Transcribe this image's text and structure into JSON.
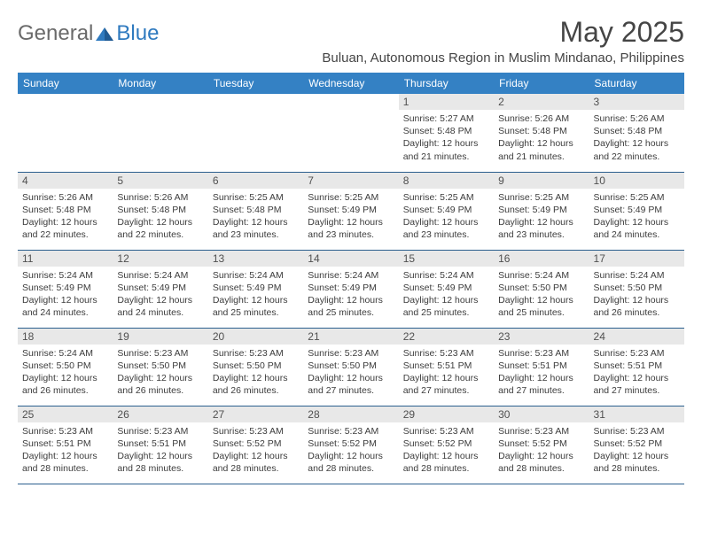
{
  "logo": {
    "general": "General",
    "blue": "Blue"
  },
  "title": "May 2025",
  "subtitle": "Buluan, Autonomous Region in Muslim Mindanao, Philippines",
  "headers": [
    "Sunday",
    "Monday",
    "Tuesday",
    "Wednesday",
    "Thursday",
    "Friday",
    "Saturday"
  ],
  "colors": {
    "header_bg": "#3481c4",
    "header_text": "#ffffff",
    "daynum_bg": "#e8e8e8",
    "border": "#2b5f8e",
    "logo_gray": "#6a6a6a",
    "logo_blue": "#2f7abf"
  },
  "weeks": [
    [
      null,
      null,
      null,
      null,
      {
        "n": "1",
        "sr": "Sunrise: 5:27 AM",
        "ss": "Sunset: 5:48 PM",
        "d1": "Daylight: 12 hours",
        "d2": "and 21 minutes."
      },
      {
        "n": "2",
        "sr": "Sunrise: 5:26 AM",
        "ss": "Sunset: 5:48 PM",
        "d1": "Daylight: 12 hours",
        "d2": "and 21 minutes."
      },
      {
        "n": "3",
        "sr": "Sunrise: 5:26 AM",
        "ss": "Sunset: 5:48 PM",
        "d1": "Daylight: 12 hours",
        "d2": "and 22 minutes."
      }
    ],
    [
      {
        "n": "4",
        "sr": "Sunrise: 5:26 AM",
        "ss": "Sunset: 5:48 PM",
        "d1": "Daylight: 12 hours",
        "d2": "and 22 minutes."
      },
      {
        "n": "5",
        "sr": "Sunrise: 5:26 AM",
        "ss": "Sunset: 5:48 PM",
        "d1": "Daylight: 12 hours",
        "d2": "and 22 minutes."
      },
      {
        "n": "6",
        "sr": "Sunrise: 5:25 AM",
        "ss": "Sunset: 5:48 PM",
        "d1": "Daylight: 12 hours",
        "d2": "and 23 minutes."
      },
      {
        "n": "7",
        "sr": "Sunrise: 5:25 AM",
        "ss": "Sunset: 5:49 PM",
        "d1": "Daylight: 12 hours",
        "d2": "and 23 minutes."
      },
      {
        "n": "8",
        "sr": "Sunrise: 5:25 AM",
        "ss": "Sunset: 5:49 PM",
        "d1": "Daylight: 12 hours",
        "d2": "and 23 minutes."
      },
      {
        "n": "9",
        "sr": "Sunrise: 5:25 AM",
        "ss": "Sunset: 5:49 PM",
        "d1": "Daylight: 12 hours",
        "d2": "and 23 minutes."
      },
      {
        "n": "10",
        "sr": "Sunrise: 5:25 AM",
        "ss": "Sunset: 5:49 PM",
        "d1": "Daylight: 12 hours",
        "d2": "and 24 minutes."
      }
    ],
    [
      {
        "n": "11",
        "sr": "Sunrise: 5:24 AM",
        "ss": "Sunset: 5:49 PM",
        "d1": "Daylight: 12 hours",
        "d2": "and 24 minutes."
      },
      {
        "n": "12",
        "sr": "Sunrise: 5:24 AM",
        "ss": "Sunset: 5:49 PM",
        "d1": "Daylight: 12 hours",
        "d2": "and 24 minutes."
      },
      {
        "n": "13",
        "sr": "Sunrise: 5:24 AM",
        "ss": "Sunset: 5:49 PM",
        "d1": "Daylight: 12 hours",
        "d2": "and 25 minutes."
      },
      {
        "n": "14",
        "sr": "Sunrise: 5:24 AM",
        "ss": "Sunset: 5:49 PM",
        "d1": "Daylight: 12 hours",
        "d2": "and 25 minutes."
      },
      {
        "n": "15",
        "sr": "Sunrise: 5:24 AM",
        "ss": "Sunset: 5:49 PM",
        "d1": "Daylight: 12 hours",
        "d2": "and 25 minutes."
      },
      {
        "n": "16",
        "sr": "Sunrise: 5:24 AM",
        "ss": "Sunset: 5:50 PM",
        "d1": "Daylight: 12 hours",
        "d2": "and 25 minutes."
      },
      {
        "n": "17",
        "sr": "Sunrise: 5:24 AM",
        "ss": "Sunset: 5:50 PM",
        "d1": "Daylight: 12 hours",
        "d2": "and 26 minutes."
      }
    ],
    [
      {
        "n": "18",
        "sr": "Sunrise: 5:24 AM",
        "ss": "Sunset: 5:50 PM",
        "d1": "Daylight: 12 hours",
        "d2": "and 26 minutes."
      },
      {
        "n": "19",
        "sr": "Sunrise: 5:23 AM",
        "ss": "Sunset: 5:50 PM",
        "d1": "Daylight: 12 hours",
        "d2": "and 26 minutes."
      },
      {
        "n": "20",
        "sr": "Sunrise: 5:23 AM",
        "ss": "Sunset: 5:50 PM",
        "d1": "Daylight: 12 hours",
        "d2": "and 26 minutes."
      },
      {
        "n": "21",
        "sr": "Sunrise: 5:23 AM",
        "ss": "Sunset: 5:50 PM",
        "d1": "Daylight: 12 hours",
        "d2": "and 27 minutes."
      },
      {
        "n": "22",
        "sr": "Sunrise: 5:23 AM",
        "ss": "Sunset: 5:51 PM",
        "d1": "Daylight: 12 hours",
        "d2": "and 27 minutes."
      },
      {
        "n": "23",
        "sr": "Sunrise: 5:23 AM",
        "ss": "Sunset: 5:51 PM",
        "d1": "Daylight: 12 hours",
        "d2": "and 27 minutes."
      },
      {
        "n": "24",
        "sr": "Sunrise: 5:23 AM",
        "ss": "Sunset: 5:51 PM",
        "d1": "Daylight: 12 hours",
        "d2": "and 27 minutes."
      }
    ],
    [
      {
        "n": "25",
        "sr": "Sunrise: 5:23 AM",
        "ss": "Sunset: 5:51 PM",
        "d1": "Daylight: 12 hours",
        "d2": "and 28 minutes."
      },
      {
        "n": "26",
        "sr": "Sunrise: 5:23 AM",
        "ss": "Sunset: 5:51 PM",
        "d1": "Daylight: 12 hours",
        "d2": "and 28 minutes."
      },
      {
        "n": "27",
        "sr": "Sunrise: 5:23 AM",
        "ss": "Sunset: 5:52 PM",
        "d1": "Daylight: 12 hours",
        "d2": "and 28 minutes."
      },
      {
        "n": "28",
        "sr": "Sunrise: 5:23 AM",
        "ss": "Sunset: 5:52 PM",
        "d1": "Daylight: 12 hours",
        "d2": "and 28 minutes."
      },
      {
        "n": "29",
        "sr": "Sunrise: 5:23 AM",
        "ss": "Sunset: 5:52 PM",
        "d1": "Daylight: 12 hours",
        "d2": "and 28 minutes."
      },
      {
        "n": "30",
        "sr": "Sunrise: 5:23 AM",
        "ss": "Sunset: 5:52 PM",
        "d1": "Daylight: 12 hours",
        "d2": "and 28 minutes."
      },
      {
        "n": "31",
        "sr": "Sunrise: 5:23 AM",
        "ss": "Sunset: 5:52 PM",
        "d1": "Daylight: 12 hours",
        "d2": "and 28 minutes."
      }
    ]
  ]
}
